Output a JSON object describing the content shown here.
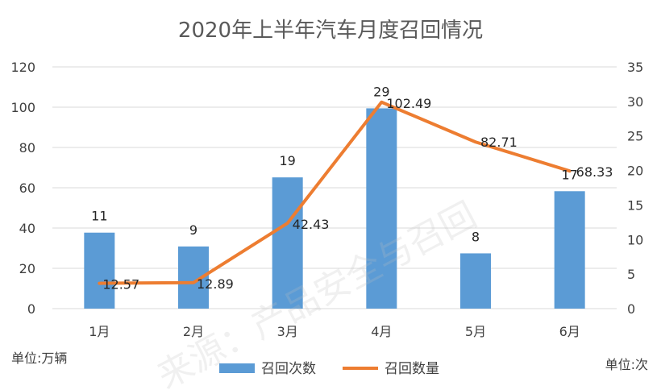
{
  "chart_data": {
    "type": "bar",
    "title": "2020年上半年汽车月度召回情况",
    "categories": [
      "1月",
      "2月",
      "3月",
      "4月",
      "5月",
      "6月"
    ],
    "series": [
      {
        "name": "召回次数",
        "type": "bar",
        "axis": "right",
        "values": [
          11,
          9,
          19,
          29,
          8,
          17
        ],
        "color": "#5b9bd5"
      },
      {
        "name": "召回数量",
        "type": "line",
        "axis": "left",
        "values": [
          12.57,
          12.89,
          42.43,
          102.49,
          82.71,
          68.33
        ],
        "color": "#ed7d31"
      }
    ],
    "left_axis": {
      "ylim": [
        0,
        120
      ],
      "ticks": [
        "0",
        "20",
        "40",
        "60",
        "80",
        "100",
        "120"
      ],
      "unit_label": "单位:万辆"
    },
    "right_axis": {
      "ylim": [
        0,
        35
      ],
      "ticks": [
        "0",
        "5",
        "10",
        "15",
        "20",
        "25",
        "30",
        "35"
      ],
      "unit_label": "单位:次"
    },
    "grid": true,
    "legend_position": "bottom"
  },
  "watermark": "来源：产品安全与召回"
}
